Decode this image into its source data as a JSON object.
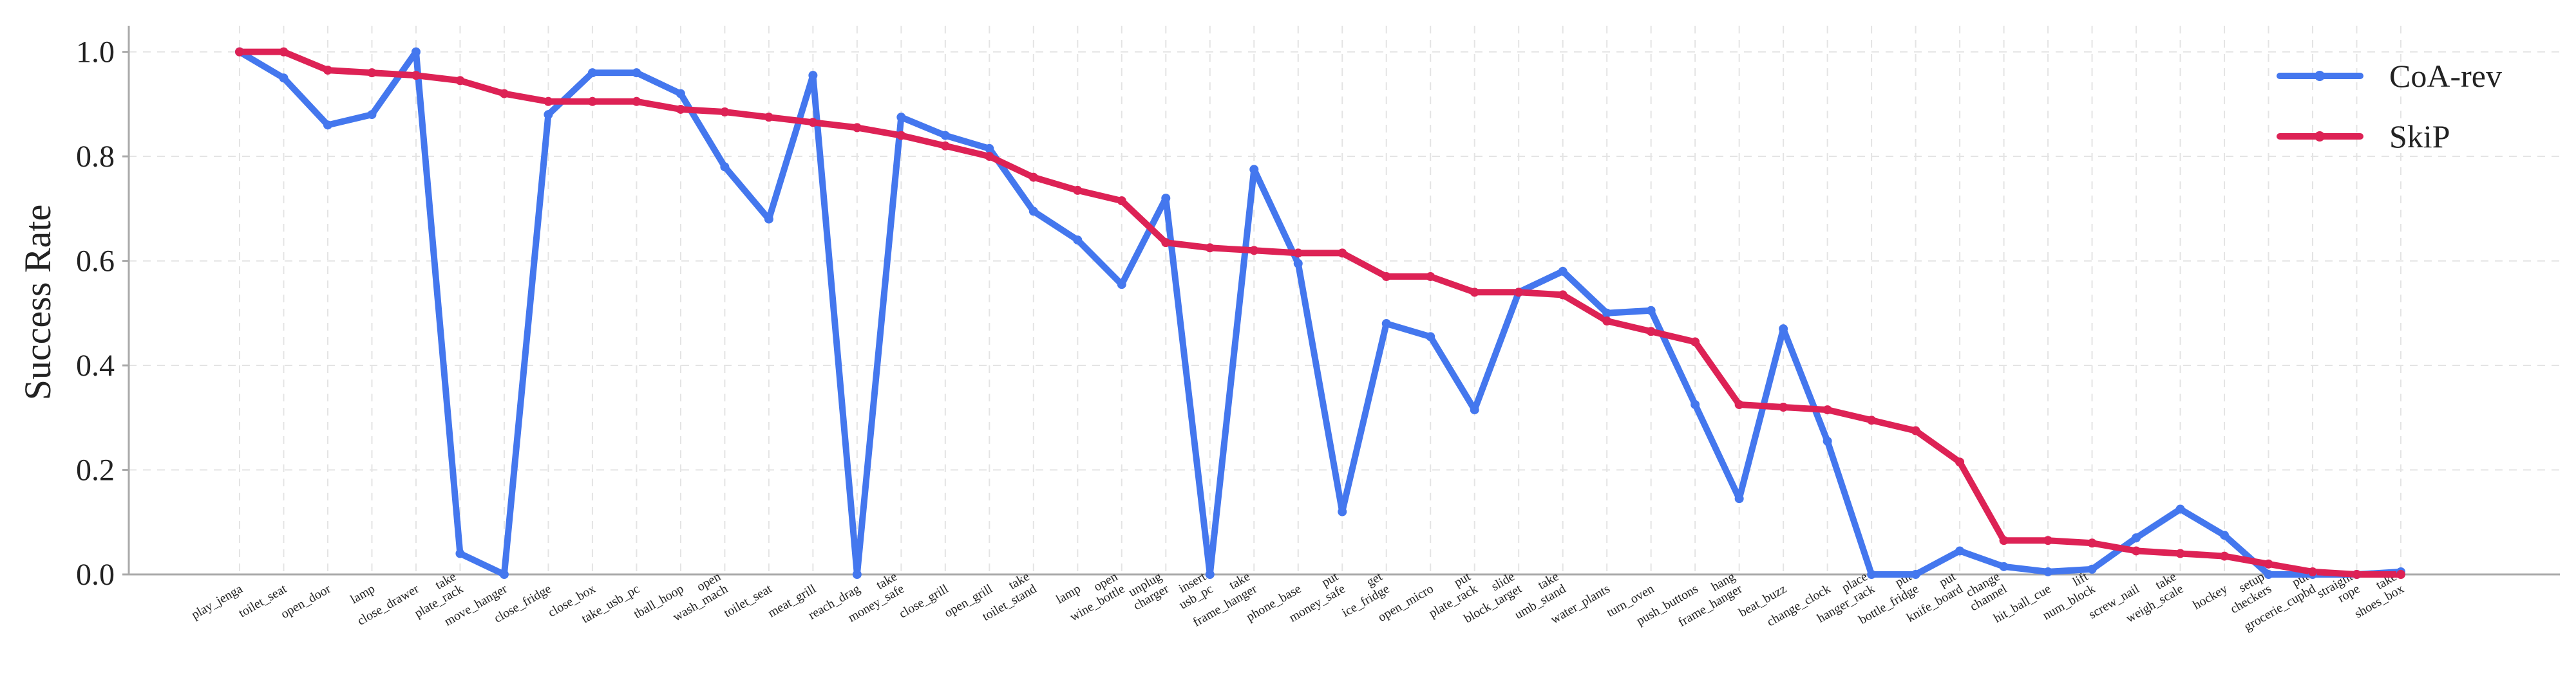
{
  "chart_data": {
    "type": "line",
    "title": "",
    "xlabel": "",
    "ylabel": "Success Rate",
    "ylim": [
      0,
      1.05
    ],
    "yticks": [
      "0.0",
      "0.2",
      "0.4",
      "0.6",
      "0.8",
      "1.0"
    ],
    "grid": true,
    "legend": "top-right",
    "categories": [
      "play_jenga",
      "toilet_seat",
      "open_door",
      "lamp",
      "close_drawer",
      "take\nplate_rack",
      "move_hanger",
      "close_fridge",
      "close_box",
      "take_usb_pc",
      "tball_hoop",
      "open\nwash_mach",
      "toilet_seat",
      "meat_grill",
      "reach_drag",
      "take\nmoney_safe",
      "close_grill",
      "open_grill",
      "take\ntoilet_stand",
      "lamp",
      "open\nwine_bottle",
      "unplug\ncharger",
      "insert\nusb_pc",
      "take\nframe_hanger",
      "phone_base",
      "put\nmoney_safe",
      "get\nice_fridge",
      "open_micro",
      "put\nplate_rack",
      "slide\nblock_target",
      "take\numb_stand",
      "water_plants",
      "turn_oven",
      "push_buttons",
      "hang\nframe_hanger",
      "beat_buzz",
      "change_clock",
      "place\nhanger_rack",
      "put\nbottle_fridge",
      "put\nknife_board",
      "change\nchannel",
      "hit_ball_cue",
      "lift\nnum_block",
      "screw_nail",
      "take\nweigh_scale",
      "hockey",
      "setup\ncheckers",
      "put\ngrocerie_cupbd",
      "straight\nrope",
      "take\nshoes_box"
    ],
    "series": [
      {
        "name": "CoA-rev",
        "color": "#4477ee",
        "values": [
          1.0,
          0.95,
          0.86,
          0.88,
          1.0,
          0.04,
          0.0,
          0.88,
          0.96,
          0.96,
          0.92,
          0.78,
          0.68,
          0.955,
          0.0,
          0.875,
          0.84,
          0.815,
          0.695,
          0.64,
          0.555,
          0.72,
          0.0,
          0.775,
          0.595,
          0.12,
          0.48,
          0.455,
          0.315,
          0.54,
          0.58,
          0.5,
          0.505,
          0.325,
          0.145,
          0.47,
          0.255,
          0.0,
          0.0,
          0.045,
          0.015,
          0.005,
          0.01,
          0.07,
          0.125,
          0.075,
          0.0,
          0.0,
          0.0,
          0.005
        ]
      },
      {
        "name": "SkiP",
        "color": "#dd2255",
        "values": [
          1.0,
          1.0,
          0.965,
          0.96,
          0.955,
          0.945,
          0.92,
          0.905,
          0.905,
          0.905,
          0.89,
          0.885,
          0.875,
          0.865,
          0.855,
          0.84,
          0.82,
          0.8,
          0.76,
          0.735,
          0.715,
          0.635,
          0.625,
          0.62,
          0.615,
          0.615,
          0.57,
          0.57,
          0.54,
          0.54,
          0.535,
          0.485,
          0.465,
          0.445,
          0.325,
          0.32,
          0.315,
          0.295,
          0.275,
          0.215,
          0.065,
          0.065,
          0.06,
          0.045,
          0.04,
          0.035,
          0.02,
          0.005,
          0.0,
          0.0
        ]
      }
    ]
  }
}
